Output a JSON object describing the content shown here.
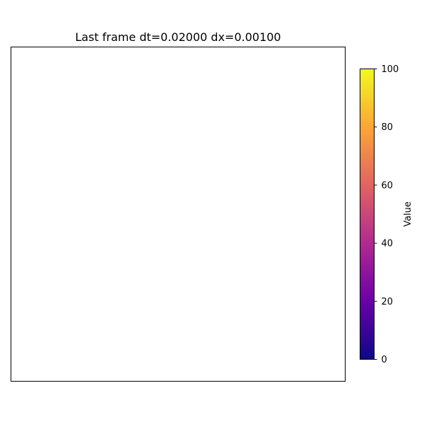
{
  "chart_data": {
    "type": "heatmap",
    "title": "Last frame dt=0.02000 dx=0.00100",
    "values": [],
    "colorbar": {
      "label": "Value",
      "range": [
        0,
        100
      ],
      "ticks": [
        0,
        20,
        40,
        60,
        80,
        100
      ],
      "tick_labels": [
        "0",
        "20",
        "40",
        "60",
        "80",
        "100"
      ],
      "colormap": "plasma",
      "colors": [
        "#0d0887",
        "#6a00a8",
        "#b12a90",
        "#e16462",
        "#fca636",
        "#f0f921"
      ]
    }
  }
}
